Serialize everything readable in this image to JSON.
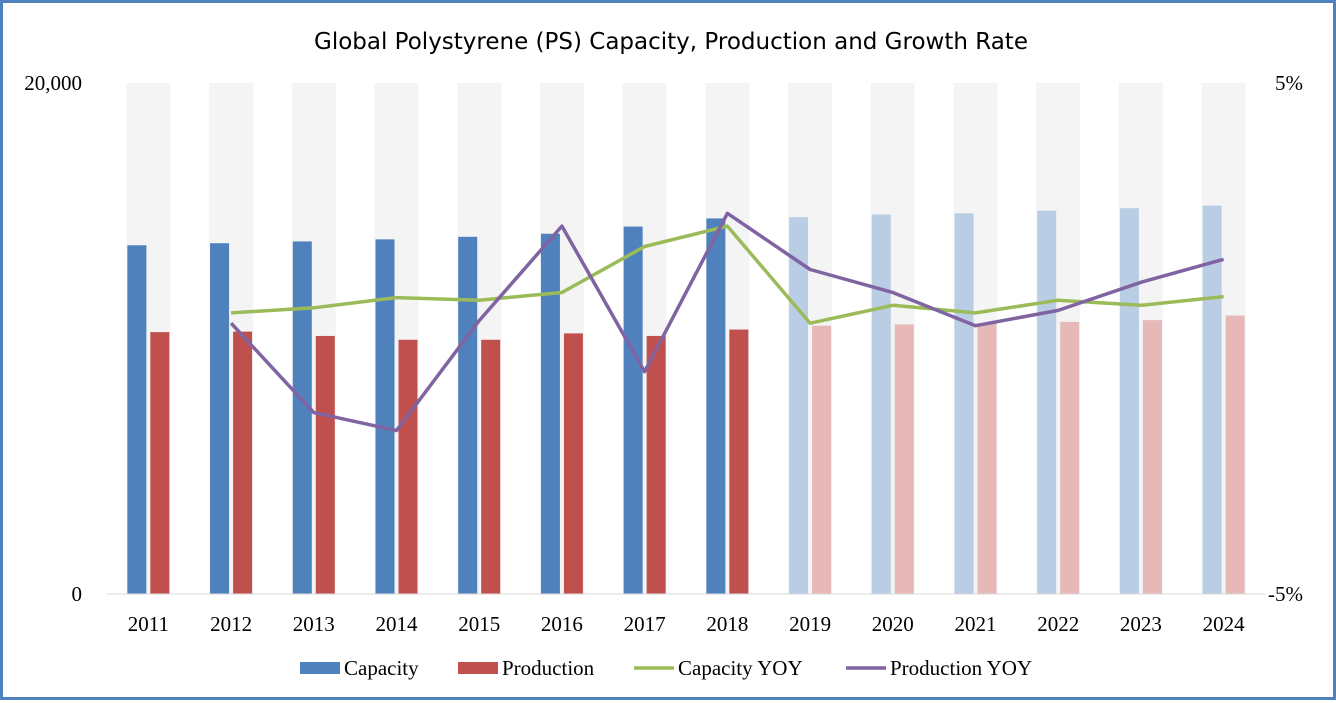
{
  "chart_data": {
    "type": "bar",
    "title": "Global Polystyrene (PS) Capacity, Production and Growth Rate",
    "categories": [
      "2011",
      "2012",
      "2013",
      "2014",
      "2015",
      "2016",
      "2017",
      "2018",
      "2019",
      "2020",
      "2021",
      "2022",
      "2023",
      "2024"
    ],
    "forecast_start_index": 8,
    "y_left": {
      "min": 0,
      "max": 20000,
      "tick_labels": [
        "0",
        "20,000"
      ]
    },
    "y_right": {
      "min": -5,
      "max": 5,
      "unit": "%",
      "tick_labels": [
        "-5%",
        "5%"
      ]
    },
    "bar_series": [
      {
        "name": "Capacity",
        "color": "#4f81bd",
        "forecast_color": "#b9cde5",
        "values": [
          13650,
          13730,
          13800,
          13880,
          13980,
          14100,
          14380,
          14700,
          14750,
          14850,
          14900,
          15000,
          15100,
          15200
        ]
      },
      {
        "name": "Production",
        "color": "#c0504d",
        "forecast_color": "#e6b9b8",
        "values": [
          10250,
          10270,
          10100,
          9950,
          9950,
          10200,
          10100,
          10350,
          10500,
          10550,
          10600,
          10650,
          10720,
          10900
        ]
      }
    ],
    "line_series": [
      {
        "name": "Capacity YOY",
        "color": "#9bbb59",
        "values": [
          null,
          0.5,
          0.6,
          0.8,
          0.75,
          0.9,
          1.8,
          2.2,
          0.3,
          0.65,
          0.5,
          0.75,
          0.65,
          0.82
        ]
      },
      {
        "name": "Production YOY",
        "color": "#8064a2",
        "values": [
          null,
          0.3,
          -1.45,
          -1.8,
          0.35,
          2.2,
          -0.65,
          2.45,
          1.35,
          0.9,
          0.25,
          0.55,
          1.1,
          1.55
        ]
      }
    ],
    "legend": {
      "position": "bottom",
      "entries": [
        "Capacity",
        "Production",
        "Capacity YOY",
        "Production YOY"
      ]
    },
    "grid": false
  }
}
